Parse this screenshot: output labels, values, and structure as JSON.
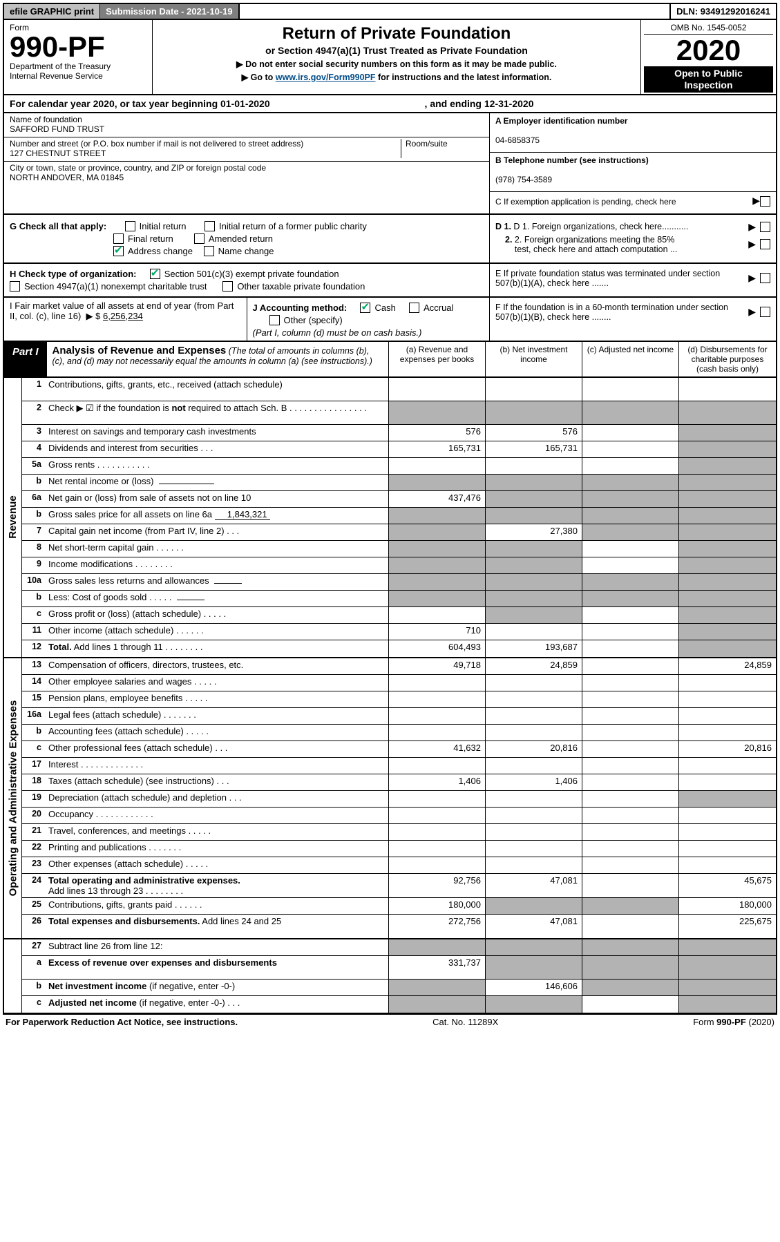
{
  "topbar": {
    "efile": "efile GRAPHIC print",
    "submission_label": "Submission Date - 2021-10-19",
    "dln": "DLN: 93491292016241"
  },
  "form": {
    "label": "Form",
    "num": "990-PF",
    "dept1": "Department of the Treasury",
    "dept2": "Internal Revenue Service"
  },
  "title": {
    "main": "Return of Private Foundation",
    "sub1": "or Section 4947(a)(1) Trust Treated as Private Foundation",
    "warn": "▶ Do not enter social security numbers on this form as it may be made public.",
    "goto_pre": "▶ Go to ",
    "goto_link": "www.irs.gov/Form990PF",
    "goto_post": " for instructions and the latest information."
  },
  "right": {
    "omb": "OMB No. 1545-0052",
    "year": "2020",
    "open1": "Open to Public",
    "open2": "Inspection"
  },
  "calyear": {
    "l": "For calendar year 2020, or tax year beginning 01-01-2020",
    "r": ", and ending 12-31-2020"
  },
  "id": {
    "name_lab": "Name of foundation",
    "name": "SAFFORD FUND TRUST",
    "addr_lab": "Number and street (or P.O. box number if mail is not delivered to street address)",
    "room_lab": "Room/suite",
    "addr": "127 CHESTNUT STREET",
    "city_lab": "City or town, state or province, country, and ZIP or foreign postal code",
    "city": "NORTH ANDOVER, MA  01845",
    "A_lab": "A Employer identification number",
    "A": "04-6858375",
    "B_lab": "B Telephone number (see instructions)",
    "B": "(978) 754-3589",
    "C": "C If exemption application is pending, check here"
  },
  "G": {
    "lead": "G Check all that apply:",
    "initial": "Initial return",
    "initial2": "Initial return of a former public charity",
    "final": "Final return",
    "amended": "Amended return",
    "addr_change": "Address change",
    "name_change": "Name change"
  },
  "H": {
    "lead": "H Check type of organization:",
    "o1": "Section 501(c)(3) exempt private foundation",
    "o2": "Section 4947(a)(1) nonexempt charitable trust",
    "o3": "Other taxable private foundation"
  },
  "I": {
    "label": "I Fair market value of all assets at end of year (from Part II, col. (c), line 16)",
    "val_label": "▶ $",
    "val": "6,256,234"
  },
  "J": {
    "lead": "J Accounting method:",
    "cash": "Cash",
    "accrual": "Accrual",
    "other": "Other (specify)",
    "note": "(Part I, column (d) must be on cash basis.)"
  },
  "D": {
    "d1": "D 1. Foreign organizations, check here...........",
    "d2a": "2. Foreign organizations meeting the 85%",
    "d2b": "test, check here and attach computation ..."
  },
  "E": "E  If private foundation status was terminated under section 507(b)(1)(A), check here .......",
  "F": "F  If the foundation is in a 60-month termination under section 507(b)(1)(B), check here ........",
  "part1": {
    "tag": "Part I",
    "title": "Analysis of Revenue and Expenses",
    "note": "(The total of amounts in columns (b), (c), and (d) may not necessarily equal the amounts in column (a) (see instructions).)",
    "cA": "(a)  Revenue and expenses per books",
    "cB": "(b)  Net investment income",
    "cC": "(c)  Adjusted net income",
    "cD": "(d)  Disbursements for charitable purposes (cash basis only)"
  },
  "side_rev": "Revenue",
  "side_exp": "Operating and Administrative Expenses",
  "rows_rev": [
    {
      "n": "1",
      "t": "Contributions, gifts, grants, etc., received (attach schedule)",
      "a": "",
      "b": "",
      "c": "",
      "d": "",
      "dGrey": true,
      "tall": true
    },
    {
      "n": "2",
      "t": "Check ▶ ☑ if the foundation is <b>not</b> required to attach Sch. B  .  .  .  .  .  .  .  .  .  .  .  .  .  .  .  .",
      "a": "#grey",
      "b": "#grey",
      "c": "#grey",
      "d": "#grey",
      "tall": true
    },
    {
      "n": "3",
      "t": "Interest on savings and temporary cash investments",
      "a": "576",
      "b": "576",
      "c": "",
      "d": "#grey"
    },
    {
      "n": "4",
      "t": "Dividends and interest from securities  .  .  .",
      "a": "165,731",
      "b": "165,731",
      "c": "",
      "d": "#grey"
    },
    {
      "n": "5a",
      "t": "Gross rents  .  .  .  .  .  .  .  .  .  .  .",
      "a": "",
      "b": "",
      "c": "",
      "d": "#grey"
    },
    {
      "n": "b",
      "t": "Net rental income or (loss) &nbsp;<span class='inline-input'></span>",
      "a": "#grey",
      "b": "#grey",
      "c": "#grey",
      "d": "#grey"
    },
    {
      "n": "6a",
      "t": "Net gain or (loss) from sale of assets not on line 10",
      "a": "437,476",
      "b": "#grey",
      "c": "#grey",
      "d": "#grey"
    },
    {
      "n": "b",
      "t": "Gross sales price for all assets on line 6a <span class='inline-input'>1,843,321</span>",
      "a": "#grey",
      "b": "#grey",
      "c": "#grey",
      "d": "#grey"
    },
    {
      "n": "7",
      "t": "Capital gain net income (from Part IV, line 2)  .  .  .",
      "a": "#grey",
      "b": "27,380",
      "c": "#grey",
      "d": "#grey"
    },
    {
      "n": "8",
      "t": "Net short-term capital gain  .  .  .  .  .  .",
      "a": "#grey",
      "b": "#grey",
      "c": "",
      "d": "#grey"
    },
    {
      "n": "9",
      "t": "Income modifications  .  .  .  .  .  .  .  .",
      "a": "#grey",
      "b": "#grey",
      "c": "",
      "d": "#grey"
    },
    {
      "n": "10a",
      "t": "Gross sales less returns and allowances &nbsp;<span class='inline-input' style='min-width:40px'></span>",
      "a": "#grey",
      "b": "#grey",
      "c": "#grey",
      "d": "#grey"
    },
    {
      "n": "b",
      "t": "Less: Cost of goods sold  .  .  .  .  . &nbsp;<span class='inline-input' style='min-width:40px'></span>",
      "a": "#grey",
      "b": "#grey",
      "c": "#grey",
      "d": "#grey"
    },
    {
      "n": "c",
      "t": "Gross profit or (loss) (attach schedule)  .  .  .  .  .",
      "a": "",
      "b": "#grey",
      "c": "",
      "d": "#grey"
    },
    {
      "n": "11",
      "t": "Other income (attach schedule)  .  .  .  .  .  .",
      "a": "710",
      "b": "",
      "c": "",
      "d": "#grey"
    },
    {
      "n": "12",
      "t": "<b>Total.</b> Add lines 1 through 11  .  .  .  .  .  .  .  .",
      "a": "604,493",
      "b": "193,687",
      "c": "",
      "d": "#grey"
    }
  ],
  "rows_exp": [
    {
      "n": "13",
      "t": "Compensation of officers, directors, trustees, etc.",
      "a": "49,718",
      "b": "24,859",
      "c": "",
      "d": "24,859"
    },
    {
      "n": "14",
      "t": "Other employee salaries and wages  .  .  .  .  .",
      "a": "",
      "b": "",
      "c": "",
      "d": ""
    },
    {
      "n": "15",
      "t": "Pension plans, employee benefits  .  .  .  .  .",
      "a": "",
      "b": "",
      "c": "",
      "d": ""
    },
    {
      "n": "16a",
      "t": "Legal fees (attach schedule)  .  .  .  .  .  .  .",
      "a": "",
      "b": "",
      "c": "",
      "d": ""
    },
    {
      "n": "b",
      "t": "Accounting fees (attach schedule)  .  .  .  .  .",
      "a": "",
      "b": "",
      "c": "",
      "d": ""
    },
    {
      "n": "c",
      "t": "Other professional fees (attach schedule)  .  .  .",
      "a": "41,632",
      "b": "20,816",
      "c": "",
      "d": "20,816"
    },
    {
      "n": "17",
      "t": "Interest  .  .  .  .  .  .  .  .  .  .  .  .  .",
      "a": "",
      "b": "",
      "c": "",
      "d": ""
    },
    {
      "n": "18",
      "t": "Taxes (attach schedule) (see instructions)  .  .  .",
      "a": "1,406",
      "b": "1,406",
      "c": "",
      "d": ""
    },
    {
      "n": "19",
      "t": "Depreciation (attach schedule) and depletion  .  .  .",
      "a": "",
      "b": "",
      "c": "",
      "d": "#grey"
    },
    {
      "n": "20",
      "t": "Occupancy  .  .  .  .  .  .  .  .  .  .  .  .",
      "a": "",
      "b": "",
      "c": "",
      "d": ""
    },
    {
      "n": "21",
      "t": "Travel, conferences, and meetings  .  .  .  .  .",
      "a": "",
      "b": "",
      "c": "",
      "d": ""
    },
    {
      "n": "22",
      "t": "Printing and publications  .  .  .  .  .  .  .",
      "a": "",
      "b": "",
      "c": "",
      "d": ""
    },
    {
      "n": "23",
      "t": "Other expenses (attach schedule)  .  .  .  .  .",
      "a": "",
      "b": "",
      "c": "",
      "d": ""
    },
    {
      "n": "24",
      "t": "<b>Total operating and administrative expenses.</b><br>Add lines 13 through 23  .  .  .  .  .  .  .  .",
      "a": "92,756",
      "b": "47,081",
      "c": "",
      "d": "45,675",
      "tall": true
    },
    {
      "n": "25",
      "t": "Contributions, gifts, grants paid  .  .  .  .  .  .",
      "a": "180,000",
      "b": "#grey",
      "c": "#grey",
      "d": "180,000"
    },
    {
      "n": "26",
      "t": "<b>Total expenses and disbursements.</b> Add lines 24 and 25",
      "a": "272,756",
      "b": "47,081",
      "c": "",
      "d": "225,675",
      "tall": true
    }
  ],
  "rows_bot": [
    {
      "n": "27",
      "t": "Subtract line 26 from line 12:",
      "a": "#grey",
      "b": "#grey",
      "c": "#grey",
      "d": "#grey"
    },
    {
      "n": "a",
      "t": "<b>Excess of revenue over expenses and disbursements</b>",
      "a": "331,737",
      "b": "#grey",
      "c": "#grey",
      "d": "#grey",
      "tall": true
    },
    {
      "n": "b",
      "t": "<b>Net investment income</b> (if negative, enter -0-)",
      "a": "#grey",
      "b": "146,606",
      "c": "#grey",
      "d": "#grey"
    },
    {
      "n": "c",
      "t": "<b>Adjusted net income</b> (if negative, enter -0-)  .  .  .",
      "a": "#grey",
      "b": "#grey",
      "c": "",
      "d": "#grey"
    }
  ],
  "footer": {
    "l": "For Paperwork Reduction Act Notice, see instructions.",
    "m": "Cat. No. 11289X",
    "r": "Form 990-PF (2020)"
  }
}
